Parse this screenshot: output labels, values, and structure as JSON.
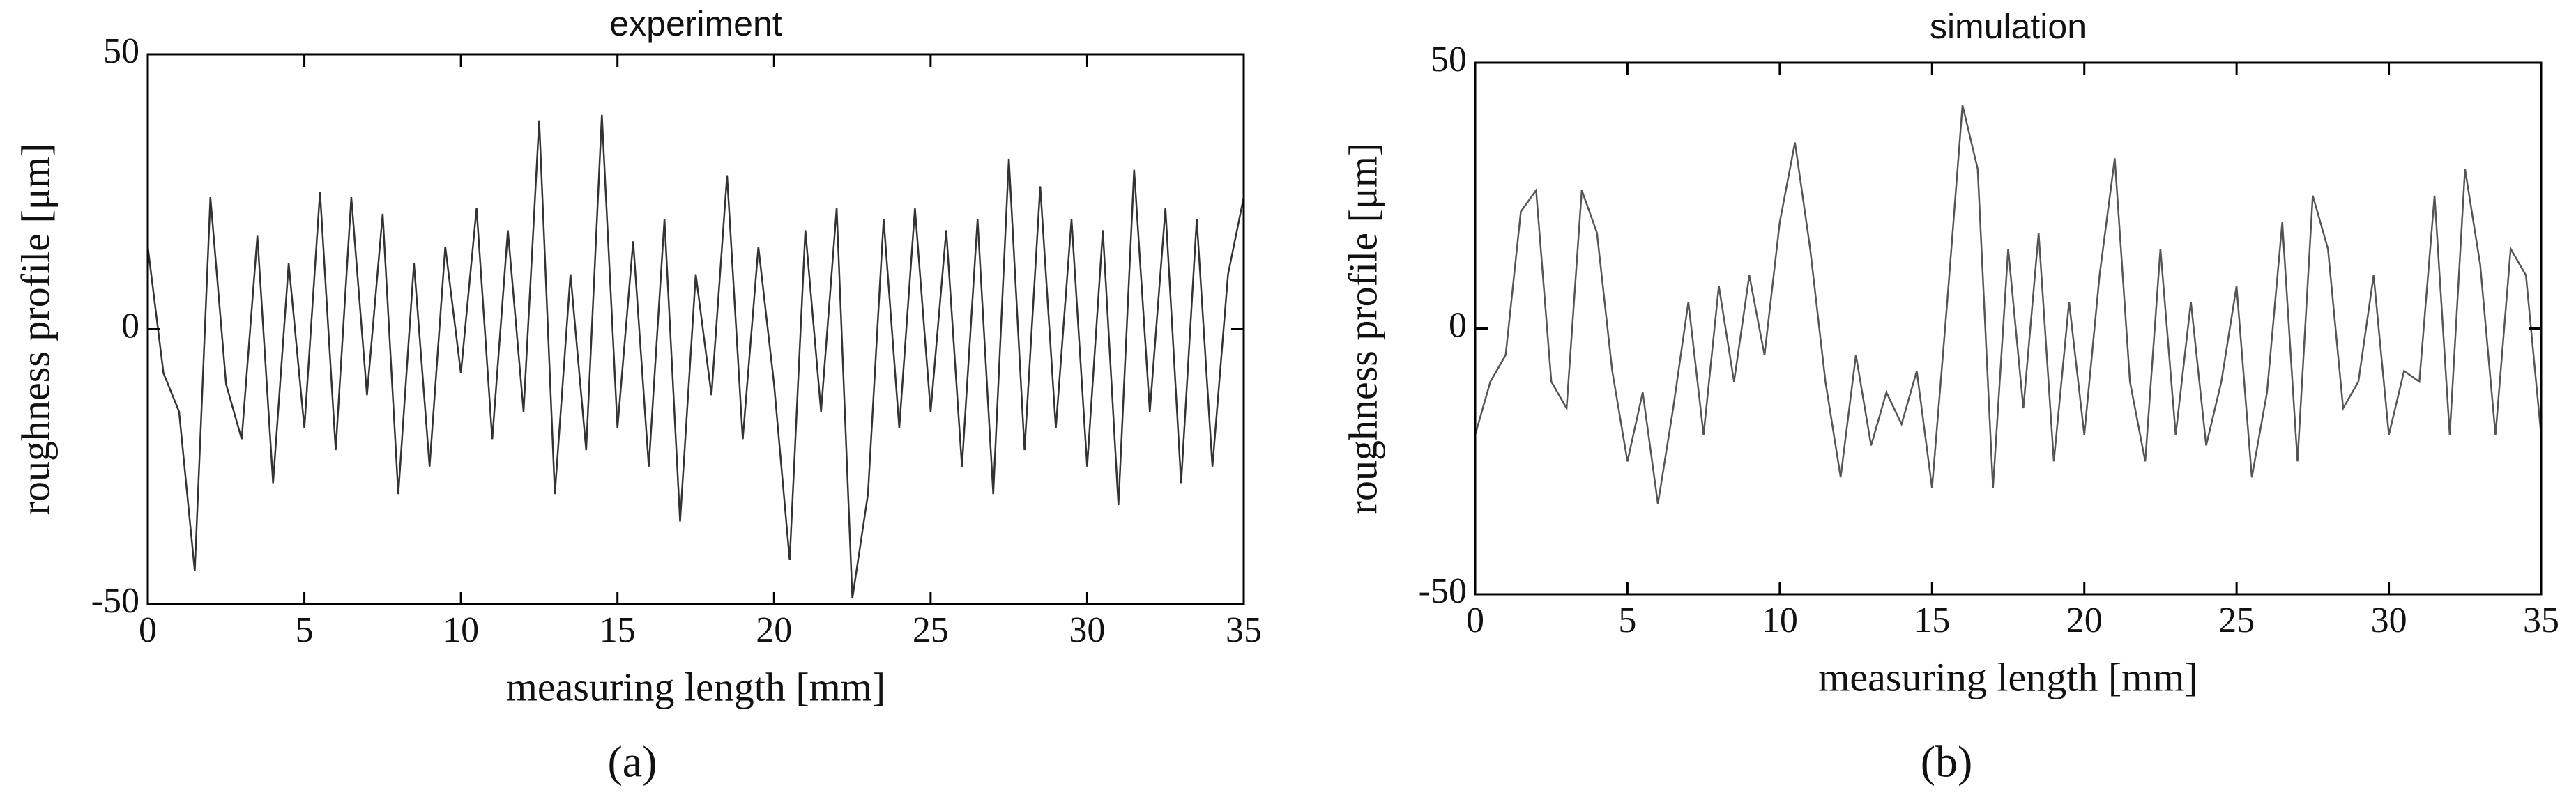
{
  "chart_data": [
    {
      "type": "line",
      "title": "experiment",
      "xlabel": "measuring length [mm]",
      "ylabel": "roughness profile [μm]",
      "panel_label": "(a)",
      "color": "#333333",
      "xlim": [
        0,
        35
      ],
      "ylim": [
        -50,
        50
      ],
      "xticks": [
        0,
        5,
        10,
        15,
        20,
        25,
        30,
        35
      ],
      "yticks": [
        -50,
        0,
        50
      ],
      "x": [
        0,
        0.5,
        1,
        1.5,
        2,
        2.5,
        3,
        3.5,
        4,
        4.5,
        5,
        5.5,
        6,
        6.5,
        7,
        7.5,
        8,
        8.5,
        9,
        9.5,
        10,
        10.5,
        11,
        11.5,
        12,
        12.5,
        13,
        13.5,
        14,
        14.5,
        15,
        15.5,
        16,
        16.5,
        17,
        17.5,
        18,
        18.5,
        19,
        19.5,
        20,
        20.5,
        21,
        21.5,
        22,
        22.5,
        23,
        23.5,
        24,
        24.5,
        25,
        25.5,
        26,
        26.5,
        27,
        27.5,
        28,
        28.5,
        29,
        29.5,
        30,
        30.5,
        31,
        31.5,
        32,
        32.5,
        33,
        33.5,
        34,
        34.5,
        35
      ],
      "values": [
        15,
        -8,
        -15,
        -44,
        24,
        -10,
        -20,
        17,
        -28,
        12,
        -18,
        25,
        -22,
        24,
        -12,
        21,
        -30,
        12,
        -25,
        15,
        -8,
        22,
        -20,
        18,
        -15,
        38,
        -30,
        10,
        -22,
        39,
        -18,
        16,
        -25,
        20,
        -35,
        10,
        -12,
        28,
        -20,
        15,
        -10,
        -42,
        18,
        -15,
        22,
        -49,
        -30,
        20,
        -18,
        22,
        -15,
        18,
        -25,
        20,
        -30,
        31,
        -22,
        26,
        -18,
        20,
        -25,
        18,
        -32,
        29,
        -15,
        22,
        -28,
        20,
        -25,
        10,
        24
      ]
    },
    {
      "type": "line",
      "title": "simulation",
      "xlabel": "measuring length [mm]",
      "ylabel": "roughness profile [μm]",
      "panel_label": "(b)",
      "color": "#555555",
      "xlim": [
        0,
        35
      ],
      "ylim": [
        -50,
        50
      ],
      "xticks": [
        0,
        5,
        10,
        15,
        20,
        25,
        30,
        35
      ],
      "yticks": [
        -50,
        0,
        50
      ],
      "x": [
        0,
        0.5,
        1,
        1.5,
        2,
        2.5,
        3,
        3.5,
        4,
        4.5,
        5,
        5.5,
        6,
        6.5,
        7,
        7.5,
        8,
        8.5,
        9,
        9.5,
        10,
        10.5,
        11,
        11.5,
        12,
        12.5,
        13,
        13.5,
        14,
        14.5,
        15,
        15.5,
        16,
        16.5,
        17,
        17.5,
        18,
        18.5,
        19,
        19.5,
        20,
        20.5,
        21,
        21.5,
        22,
        22.5,
        23,
        23.5,
        24,
        24.5,
        25,
        25.5,
        26,
        26.5,
        27,
        27.5,
        28,
        28.5,
        29,
        29.5,
        30,
        30.5,
        31,
        31.5,
        32,
        32.5,
        33,
        33.5,
        34,
        34.5,
        35
      ],
      "values": [
        -20,
        -10,
        -5,
        22,
        26,
        -10,
        -15,
        26,
        18,
        -8,
        -25,
        -12,
        -33,
        -15,
        5,
        -20,
        8,
        -10,
        10,
        -5,
        20,
        35,
        15,
        -10,
        -28,
        -5,
        -22,
        -12,
        -18,
        -8,
        -30,
        5,
        42,
        30,
        -30,
        15,
        -15,
        18,
        -25,
        5,
        -20,
        10,
        32,
        -10,
        -25,
        15,
        -20,
        5,
        -22,
        -10,
        8,
        -28,
        -12,
        20,
        -25,
        25,
        15,
        -15,
        -10,
        10,
        -20,
        -8,
        -10,
        25,
        -20,
        30,
        12,
        -20,
        15,
        10,
        -20
      ]
    }
  ]
}
